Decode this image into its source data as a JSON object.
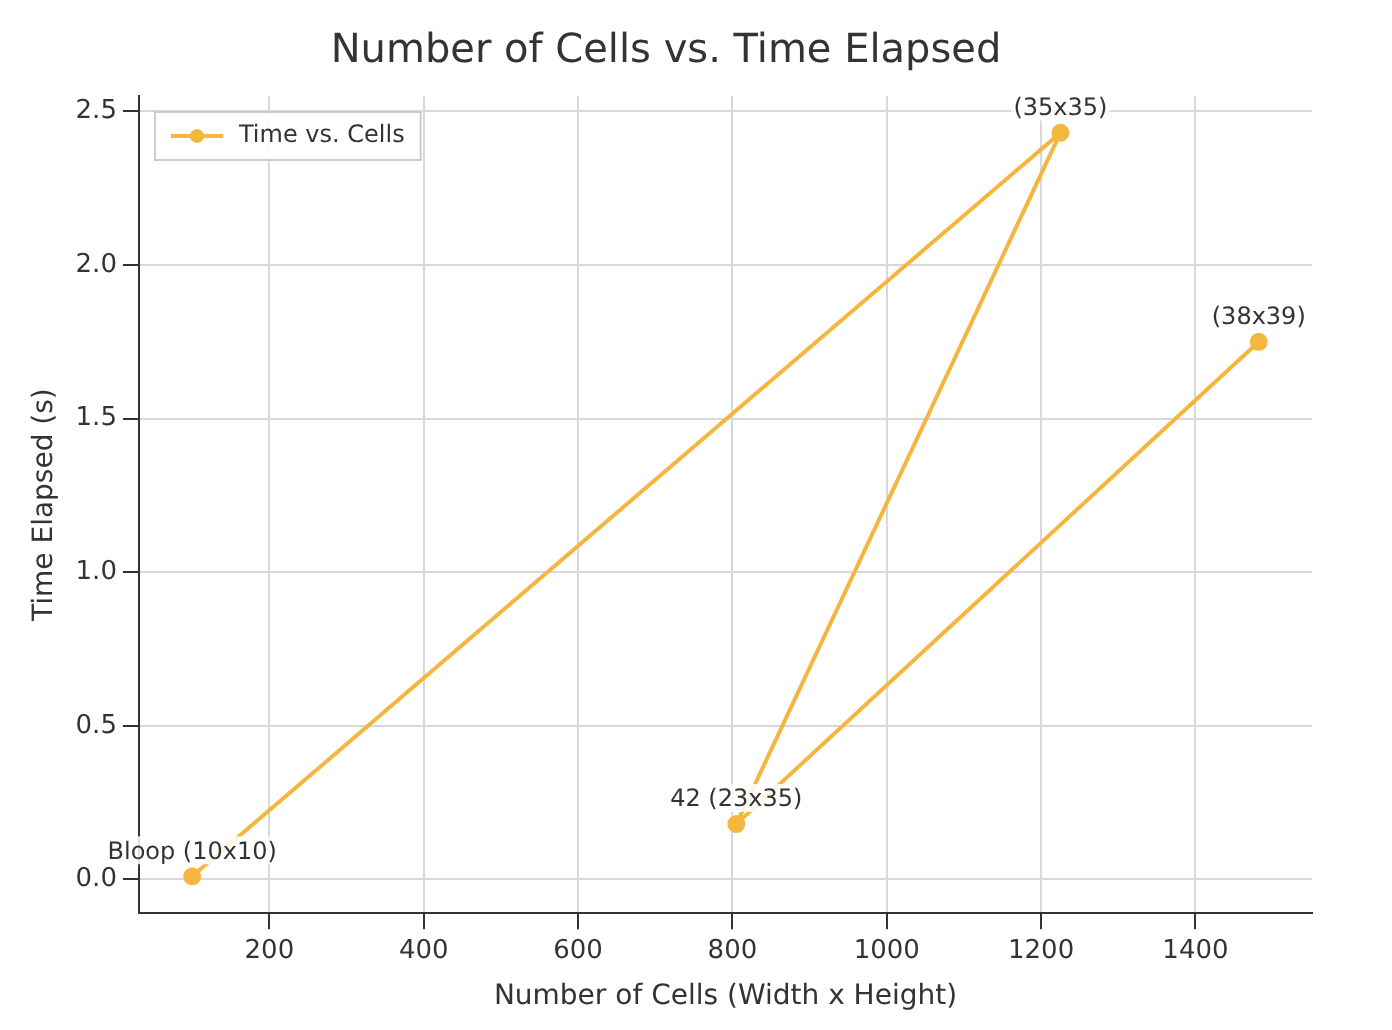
{
  "chart_data": {
    "type": "line",
    "title": "Number of Cells vs. Time Elapsed",
    "xlabel": "Number of Cells (Width x Height)",
    "ylabel": "Time Elapsed (s)",
    "x": [
      100,
      1225,
      805,
      1482
    ],
    "series": [
      {
        "name": "Time vs. Cells",
        "color": "#f4b63f",
        "values": [
          0.01,
          2.43,
          0.18,
          1.75
        ]
      }
    ],
    "xlim": [
      31,
      1551
    ],
    "xticks": [
      200,
      400,
      600,
      800,
      1000,
      1200,
      1400
    ],
    "ylim": [
      -0.11,
      2.55
    ],
    "yticks": [
      {
        "value": 0,
        "label": "0.0"
      },
      0.5,
      {
        "value": 1,
        "label": "1.0"
      },
      1.5,
      {
        "value": 2,
        "label": "2.0"
      },
      2.5
    ],
    "annotations": [
      {
        "text": "Bloop (10x10)",
        "x": 100,
        "y": 0.01
      },
      {
        "text": "(35x35)",
        "x": 1225,
        "y": 2.43
      },
      {
        "text": "42 (23x35)",
        "x": 805,
        "y": 0.18
      },
      {
        "text": "(38x39)",
        "x": 1482,
        "y": 1.75
      }
    ],
    "grid": true,
    "legend": "top left",
    "marker": "circle",
    "line_style": "solid"
  }
}
